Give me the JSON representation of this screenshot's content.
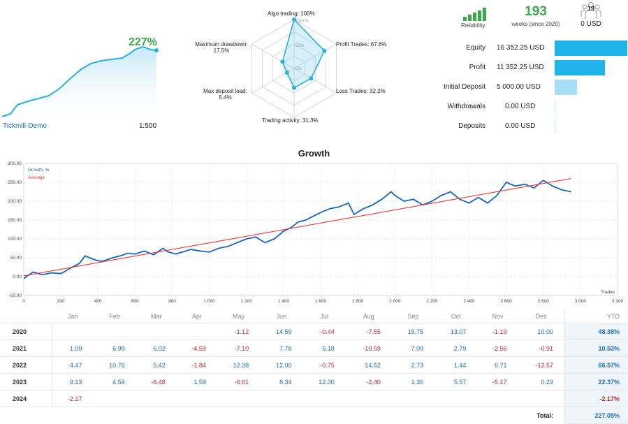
{
  "header": {
    "account_name": "Tickmill-Demo",
    "leverage": "1:500",
    "growth_pct": "227%"
  },
  "radar": {
    "labels": {
      "algo": "Algo trading: 100%",
      "profit_trades": "Profit Trades: 67.8%",
      "loss_trades": "Loss Trades: 32.2%",
      "activity": "Trading activity: 31.3%",
      "deposit_load_title": "Max deposit load:",
      "deposit_load_value": "5.4%",
      "drawdown_title": "Maximum drawdown:",
      "drawdown_value": "17.5%"
    },
    "ring_labels": [
      "100+%",
      "50%",
      "0%"
    ],
    "values": {
      "algo": 100,
      "profit_trades": 67.8,
      "loss_trades": 32.2,
      "activity": 31.3,
      "deposit_load": 5.4,
      "drawdown": 17.5
    }
  },
  "summary": {
    "reliability_label": "Reliability",
    "weeks_value": "193",
    "weeks_label": "weeks (since 2020)",
    "subscribers_count": "19",
    "subscription_price": "0 USD"
  },
  "stats": [
    {
      "label": "Equity",
      "value": "16 352.25 USD",
      "amount": 16352.25,
      "color": "#1fb3ea"
    },
    {
      "label": "Profit",
      "value": "11 352.25 USD",
      "amount": 11352.25,
      "color": "#1fb3ea"
    },
    {
      "label": "Initial Deposit",
      "value": "5 000.00 USD",
      "amount": 5000.0,
      "color": "#a8dff7"
    },
    {
      "label": "Withdrawals",
      "value": "0.00 USD",
      "amount": 0,
      "color": "#1fb3ea"
    },
    {
      "label": "Deposits",
      "value": "0.00 USD",
      "amount": 0,
      "color": "#1fb3ea"
    }
  ],
  "growth_chart": {
    "title": "Growth",
    "legend_growth": "Growth, %",
    "legend_average": "Average",
    "x_axis_label": "Trades",
    "y_ticks": [
      "300.00",
      "250.00",
      "200.00",
      "150.00",
      "100.00",
      "50.00",
      "0.00",
      "-50.00"
    ],
    "x_ticks": [
      "0",
      "200",
      "400",
      "600",
      "800",
      "1 000",
      "1 200",
      "1 400",
      "1 600",
      "1 800",
      "2 000",
      "2 200",
      "2 400",
      "2 600",
      "2 800",
      "3 000",
      "3 200"
    ]
  },
  "chart_data": {
    "type": "line",
    "title": "Growth",
    "xlabel": "Trades",
    "ylabel": "",
    "xlim": [
      0,
      3200
    ],
    "ylim": [
      -50,
      300
    ],
    "series": [
      {
        "name": "Growth, %",
        "color": "#1565c0",
        "x": [
          0,
          50,
          100,
          150,
          200,
          250,
          300,
          330,
          380,
          420,
          480,
          520,
          560,
          600,
          650,
          700,
          750,
          780,
          820,
          900,
          950,
          1000,
          1050,
          1100,
          1150,
          1200,
          1250,
          1300,
          1350,
          1400,
          1440,
          1480,
          1520,
          1560,
          1600,
          1650,
          1700,
          1750,
          1780,
          1830,
          1880,
          1930,
          1980,
          2000,
          2050,
          2100,
          2150,
          2200,
          2250,
          2300,
          2350,
          2400,
          2450,
          2500,
          2550,
          2600,
          2650,
          2700,
          2750,
          2800,
          2850,
          2900,
          2950
        ],
        "y": [
          -5,
          12,
          5,
          10,
          8,
          22,
          35,
          55,
          45,
          40,
          50,
          55,
          62,
          60,
          68,
          58,
          75,
          65,
          60,
          72,
          68,
          65,
          75,
          80,
          90,
          100,
          105,
          90,
          100,
          120,
          130,
          145,
          150,
          160,
          170,
          180,
          185,
          195,
          165,
          180,
          190,
          205,
          225,
          215,
          200,
          205,
          190,
          200,
          215,
          225,
          205,
          195,
          210,
          195,
          215,
          250,
          240,
          245,
          235,
          255,
          240,
          230,
          225
        ]
      },
      {
        "name": "Average",
        "color": "#e53935",
        "x": [
          0,
          2950
        ],
        "y": [
          2,
          260
        ]
      }
    ]
  },
  "yearly_table": {
    "months": [
      "Jan",
      "Feb",
      "Mar",
      "Apr",
      "May",
      "Jun",
      "Jul",
      "Aug",
      "Sep",
      "Oct",
      "Nov",
      "Dec"
    ],
    "ytd_header": "YTD",
    "rows": [
      {
        "year": "2020",
        "values": [
          "",
          "",
          "",
          "",
          "-1.12",
          "14.59",
          "-0.44",
          "-7.55",
          "15.75",
          "13.07",
          "-1.19",
          "10.00"
        ],
        "ytd": "48.38%"
      },
      {
        "year": "2021",
        "values": [
          "1.09",
          "6.99",
          "6.02",
          "-4.59",
          "-7.10",
          "7.78",
          "6.18",
          "-10.59",
          "7.09",
          "2.79",
          "-2.56",
          "-0.91"
        ],
        "ytd": "10.53%"
      },
      {
        "year": "2022",
        "values": [
          "4.47",
          "10.76",
          "5.42",
          "-1.84",
          "12.38",
          "12.00",
          "-0.75",
          "14.52",
          "2.73",
          "1.44",
          "6.71",
          "-12.57"
        ],
        "ytd": "66.57%"
      },
      {
        "year": "2023",
        "values": [
          "9.13",
          "4.59",
          "-6.48",
          "1.59",
          "-6.61",
          "8.34",
          "12.30",
          "-2.40",
          "1.36",
          "5.57",
          "-5.17",
          "0.29"
        ],
        "ytd": "22.37%"
      },
      {
        "year": "2024",
        "values": [
          "-2.17",
          "",
          "",
          "",
          "",
          "",
          "",
          "",
          "",
          "",
          "",
          ""
        ],
        "ytd": "-2.17%"
      }
    ],
    "total_label": "Total:",
    "total_value": "227.05%"
  }
}
